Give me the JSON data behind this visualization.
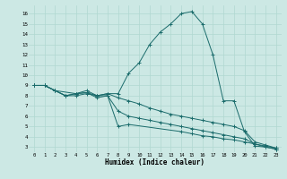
{
  "xlabel": "Humidex (Indice chaleur)",
  "bg_color": "#cce8e4",
  "line_color": "#1a6b6b",
  "grid_color": "#b0d8d0",
  "x_ticks": [
    0,
    1,
    2,
    3,
    4,
    5,
    6,
    7,
    8,
    9,
    10,
    11,
    12,
    13,
    14,
    15,
    16,
    17,
    18,
    19,
    20,
    21,
    22,
    23
  ],
  "y_ticks": [
    3,
    4,
    5,
    6,
    7,
    8,
    9,
    10,
    11,
    12,
    13,
    14,
    15,
    16
  ],
  "ylim": [
    2.5,
    16.8
  ],
  "xlim": [
    -0.5,
    23.5
  ],
  "line1_x": [
    0,
    1,
    2,
    3,
    4,
    5,
    6,
    7,
    8,
    9,
    10,
    11,
    12,
    13,
    14,
    15,
    16,
    17,
    18,
    19,
    20,
    21,
    22,
    23
  ],
  "line1_y": [
    9.0,
    9.0,
    8.5,
    8.0,
    8.0,
    8.2,
    8.0,
    8.2,
    8.2,
    10.2,
    11.2,
    13.0,
    14.2,
    15.0,
    16.0,
    16.2,
    15.0,
    12.0,
    7.5,
    7.5,
    4.5,
    3.1,
    3.0,
    2.8
  ],
  "line2_x": [
    0,
    1,
    2,
    3,
    4,
    5,
    6,
    7,
    8,
    9,
    10,
    11,
    12,
    13,
    14,
    15,
    16,
    17,
    18,
    19,
    20,
    21,
    22,
    23
  ],
  "line2_y": [
    9.0,
    9.0,
    8.5,
    8.0,
    8.2,
    8.5,
    8.0,
    8.2,
    7.8,
    7.5,
    7.2,
    6.8,
    6.5,
    6.2,
    6.0,
    5.8,
    5.6,
    5.4,
    5.2,
    5.0,
    4.6,
    3.5,
    3.2,
    2.9
  ],
  "line3_x": [
    0,
    1,
    2,
    3,
    4,
    5,
    6,
    7,
    8,
    9,
    10,
    11,
    12,
    13,
    14,
    15,
    16,
    17,
    18,
    19,
    20,
    21,
    22,
    23
  ],
  "line3_y": [
    9.0,
    9.0,
    8.5,
    8.0,
    8.2,
    8.3,
    7.8,
    8.0,
    6.5,
    6.0,
    5.8,
    5.6,
    5.4,
    5.2,
    5.0,
    4.8,
    4.6,
    4.4,
    4.2,
    4.0,
    3.8,
    3.3,
    3.0,
    2.8
  ],
  "line4_x": [
    0,
    1,
    2,
    4,
    5,
    6,
    7,
    8,
    9,
    14,
    15,
    16,
    17,
    18,
    19,
    20,
    21,
    22,
    23
  ],
  "line4_y": [
    9.0,
    9.0,
    8.5,
    8.2,
    8.3,
    8.0,
    8.0,
    5.0,
    5.2,
    4.5,
    4.3,
    4.1,
    4.0,
    3.8,
    3.7,
    3.5,
    3.3,
    3.1,
    2.9
  ]
}
